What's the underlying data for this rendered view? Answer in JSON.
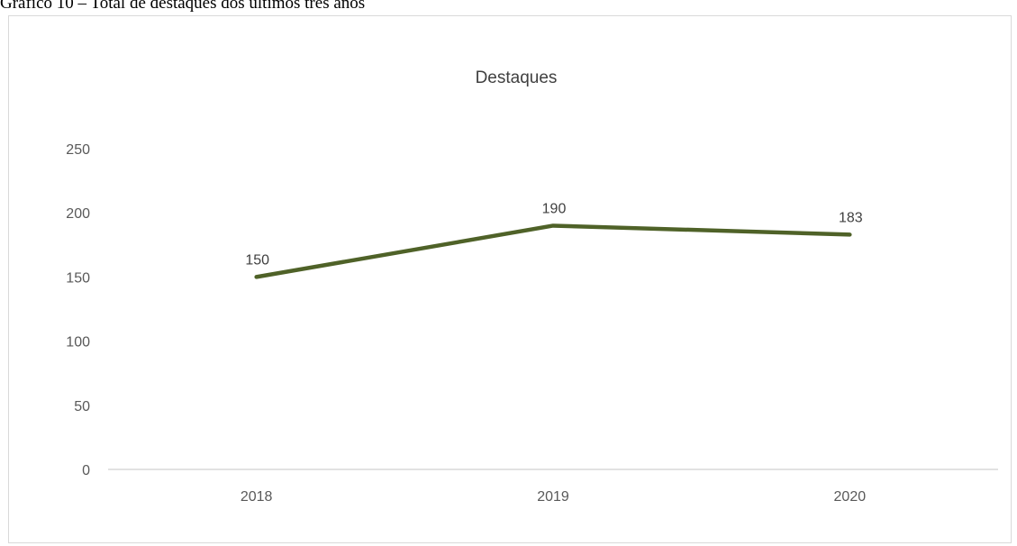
{
  "caption": "Gráfico 10 – Total de destaques dos últimos três anos",
  "chart_data": {
    "type": "line",
    "title": "Destaques",
    "categories": [
      "2018",
      "2019",
      "2020"
    ],
    "series": [
      {
        "values": [
          150,
          190,
          183
        ],
        "color": "#4f6228"
      }
    ],
    "data_labels": [
      "150",
      "190",
      "183"
    ],
    "yticks": [
      0,
      50,
      100,
      150,
      200,
      250
    ],
    "ylim": [
      0,
      250
    ],
    "grid": false,
    "legend": "none"
  }
}
